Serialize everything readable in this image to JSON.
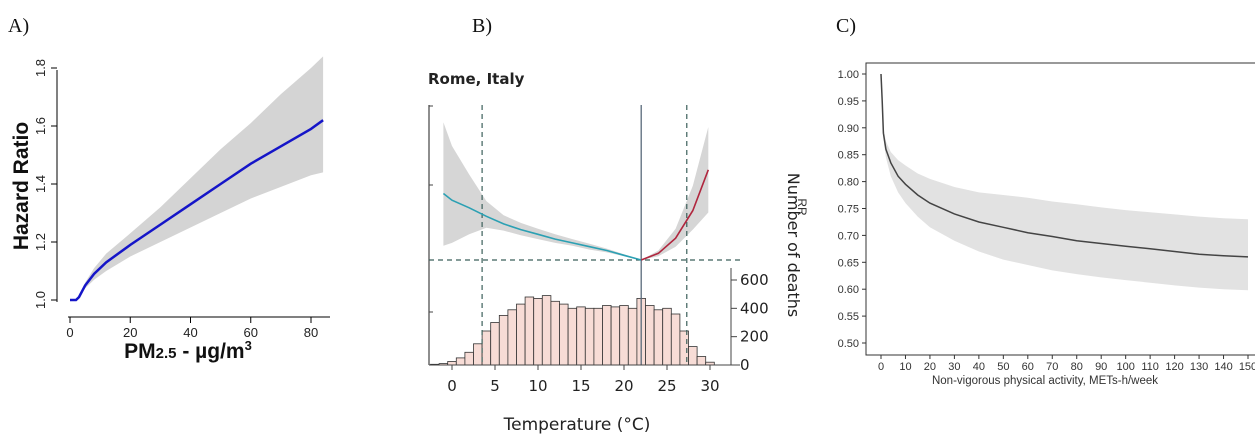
{
  "panel_labels": {
    "a": "A)",
    "b": "B)",
    "c": "C)"
  },
  "chart_data": [
    {
      "panel": "A)",
      "type": "line",
      "xlabel_main": "PM",
      "xlabel_sub": "2.5",
      "xlabel_rest": " - µg/m",
      "xlabel_sup": "3",
      "ylabel": "Hazard Ratio",
      "xlim": [
        0,
        84
      ],
      "ylim": [
        1.0,
        1.8
      ],
      "xticks": [
        "0",
        "20",
        "40",
        "60",
        "80"
      ],
      "yticks": [
        "1.0",
        "1.2",
        "1.4",
        "1.6",
        "1.8"
      ],
      "line_color": "#1515c8",
      "band_color": "#d4d4d4",
      "x": [
        0,
        2,
        3,
        5,
        8,
        12,
        20,
        30,
        40,
        50,
        60,
        70,
        80,
        84
      ],
      "y": [
        1.0,
        1.0,
        1.01,
        1.05,
        1.09,
        1.13,
        1.19,
        1.26,
        1.33,
        1.4,
        1.47,
        1.53,
        1.59,
        1.62
      ],
      "lower": [
        1.0,
        1.0,
        1.01,
        1.04,
        1.07,
        1.1,
        1.15,
        1.2,
        1.25,
        1.3,
        1.35,
        1.39,
        1.43,
        1.44
      ],
      "upper": [
        1.0,
        1.0,
        1.01,
        1.06,
        1.11,
        1.16,
        1.23,
        1.32,
        1.42,
        1.52,
        1.61,
        1.71,
        1.8,
        1.84
      ]
    },
    {
      "panel": "B)",
      "type": "line",
      "title": "Rome, Italy",
      "xlabel": "Temperature (°C)",
      "ylabel_right": "Number of deaths",
      "xlim": [
        -2.5,
        31.5
      ],
      "xticks": [
        "0",
        "5",
        "10",
        "15",
        "20",
        "25",
        "30"
      ],
      "hist_yticks": [
        "0",
        "200",
        "400",
        "600"
      ],
      "hist_ylim": [
        0,
        600
      ],
      "reference_lines": {
        "p_low": 3.5,
        "mmt": 22,
        "p_high": 27.3
      },
      "cold_color": "#2ba0b3",
      "heat_color": "#b0263e",
      "bar_fill": "#f7dcd6",
      "curve_x": [
        -1,
        0,
        2,
        4,
        6,
        8,
        10,
        12,
        14,
        16,
        18,
        20,
        22,
        24,
        26,
        28,
        29.8
      ],
      "curve_y": [
        0.7,
        0.63,
        0.55,
        0.46,
        0.38,
        0.32,
        0.27,
        0.22,
        0.18,
        0.14,
        0.1,
        0.05,
        0.0,
        0.07,
        0.23,
        0.52,
        0.95
      ],
      "lower": [
        0.15,
        0.18,
        0.27,
        0.34,
        0.31,
        0.26,
        0.22,
        0.18,
        0.15,
        0.11,
        0.08,
        0.04,
        0.0,
        0.04,
        0.14,
        0.32,
        0.5
      ],
      "upper": [
        1.45,
        1.2,
        0.9,
        0.62,
        0.47,
        0.39,
        0.33,
        0.27,
        0.22,
        0.17,
        0.12,
        0.06,
        0.0,
        0.1,
        0.33,
        0.78,
        1.4
      ],
      "hist_bins": [
        -2,
        -1,
        0,
        1,
        2,
        3,
        4,
        5,
        6,
        7,
        8,
        9,
        10,
        11,
        12,
        13,
        14,
        15,
        16,
        17,
        18,
        19,
        20,
        21,
        22,
        23,
        24,
        25,
        26,
        27,
        28,
        29,
        30
      ],
      "hist_counts": [
        5,
        10,
        25,
        50,
        90,
        150,
        240,
        300,
        350,
        390,
        430,
        480,
        470,
        490,
        450,
        430,
        400,
        410,
        400,
        400,
        420,
        410,
        420,
        400,
        470,
        420,
        390,
        400,
        360,
        240,
        130,
        60,
        20
      ]
    },
    {
      "panel": "C)",
      "type": "line",
      "xlabel": "Non-vigorous physical activity, METs-h/week",
      "ylabel": "RR",
      "xlim": [
        -2,
        152
      ],
      "ylim": [
        0.49,
        1.01
      ],
      "xticks": [
        "0",
        "10",
        "20",
        "30",
        "40",
        "50",
        "60",
        "70",
        "80",
        "90",
        "100",
        "110",
        "120",
        "130",
        "140",
        "150"
      ],
      "yticks": [
        "0.50",
        "0.55",
        "0.60",
        "0.65",
        "0.70",
        "0.75",
        "0.80",
        "0.85",
        "0.90",
        "0.95",
        "1.00"
      ],
      "line_color": "#444444",
      "band_color": "#e2e2e2",
      "x": [
        0,
        0.5,
        1,
        2,
        4,
        7,
        10,
        15,
        20,
        30,
        40,
        50,
        60,
        70,
        80,
        90,
        100,
        110,
        120,
        130,
        140,
        150
      ],
      "y": [
        1.0,
        0.95,
        0.89,
        0.86,
        0.835,
        0.81,
        0.795,
        0.775,
        0.76,
        0.74,
        0.725,
        0.715,
        0.705,
        0.698,
        0.69,
        0.685,
        0.68,
        0.675,
        0.67,
        0.665,
        0.662,
        0.66
      ],
      "lower": [
        1.0,
        0.95,
        0.88,
        0.845,
        0.81,
        0.78,
        0.76,
        0.735,
        0.715,
        0.69,
        0.67,
        0.655,
        0.645,
        0.635,
        0.628,
        0.622,
        0.617,
        0.612,
        0.607,
        0.603,
        0.6,
        0.598
      ],
      "upper": [
        1.0,
        0.95,
        0.9,
        0.875,
        0.855,
        0.84,
        0.83,
        0.815,
        0.805,
        0.79,
        0.78,
        0.775,
        0.77,
        0.763,
        0.758,
        0.752,
        0.747,
        0.743,
        0.739,
        0.735,
        0.732,
        0.73
      ]
    }
  ]
}
